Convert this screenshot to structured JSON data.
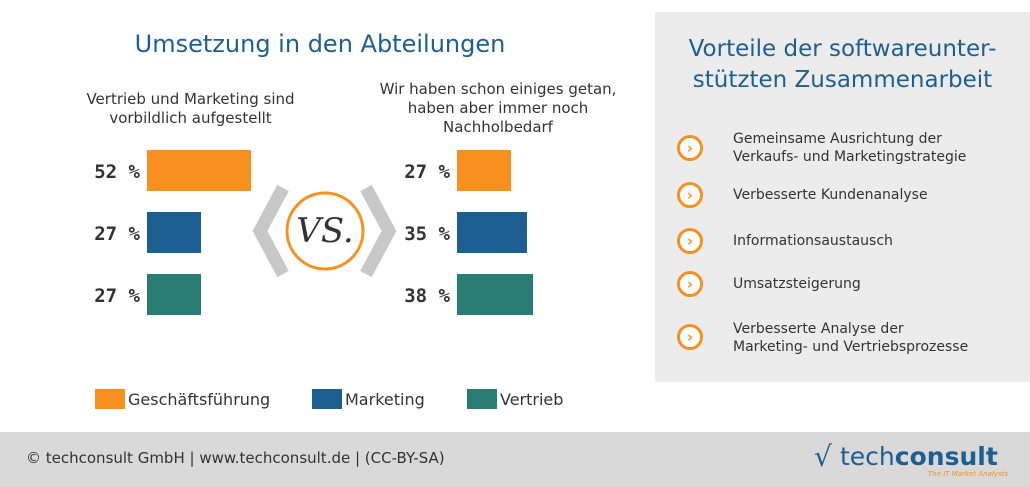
{
  "colors": {
    "accent": "#f7901e",
    "brand_blue": "#1e5f91",
    "teal": "#2a7d73",
    "panel_bg": "#ececec",
    "footer_bg": "#d9d9d9"
  },
  "chart_data": {
    "type": "bar",
    "title": "Umsetzung in den Abteilungen",
    "orientation": "horizontal",
    "vs_label": "VS.",
    "groups": [
      {
        "title": "Vertrieb und Marketing sind vorbildlich aufgestellt",
        "series": [
          {
            "name": "Geschäftsführung",
            "value": 52,
            "label": "52 %"
          },
          {
            "name": "Marketing",
            "value": 27,
            "label": "27 %"
          },
          {
            "name": "Vertrieb",
            "value": 27,
            "label": "27 %"
          }
        ]
      },
      {
        "title": "Wir haben schon einiges getan, haben aber immer noch Nachholbedarf",
        "series": [
          {
            "name": "Geschäftsführung",
            "value": 27,
            "label": "27 %"
          },
          {
            "name": "Marketing",
            "value": 35,
            "label": "35 %"
          },
          {
            "name": "Vertrieb",
            "value": 38,
            "label": "38 %"
          }
        ]
      }
    ],
    "legend": [
      {
        "name": "Geschäftsführung",
        "color": "#f7901e"
      },
      {
        "name": "Marketing",
        "color": "#1e5f91"
      },
      {
        "name": "Vertrieb",
        "color": "#2a7d73"
      }
    ],
    "legend_position": "bottom"
  },
  "panel": {
    "title_line1": "Vorteile der softwareunter-",
    "title_line2": "stützten Zusammenarbeit",
    "items": [
      {
        "icon": "chevron-right-icon",
        "line1": "Gemeinsame Ausrichtung der",
        "line2": "Verkaufs- und Marketingstrategie"
      },
      {
        "icon": "chevron-right-icon",
        "line1": "Verbesserte Kundenanalyse",
        "line2": ""
      },
      {
        "icon": "chevron-right-icon",
        "line1": "Informationsaustausch",
        "line2": ""
      },
      {
        "icon": "chevron-right-icon",
        "line1": "Umsatzsteigerung",
        "line2": ""
      },
      {
        "icon": "chevron-right-icon",
        "line1": "Verbesserte Analyse der",
        "line2": "Marketing- und Vertriebsprozesse"
      }
    ]
  },
  "footer": {
    "copyright": "© techconsult GmbH | www.techconsult.de | (CC-BY-SA)",
    "logo_word_light": "tech",
    "logo_word_bold": "consult",
    "logo_tagline": "The IT Market Analysts"
  }
}
